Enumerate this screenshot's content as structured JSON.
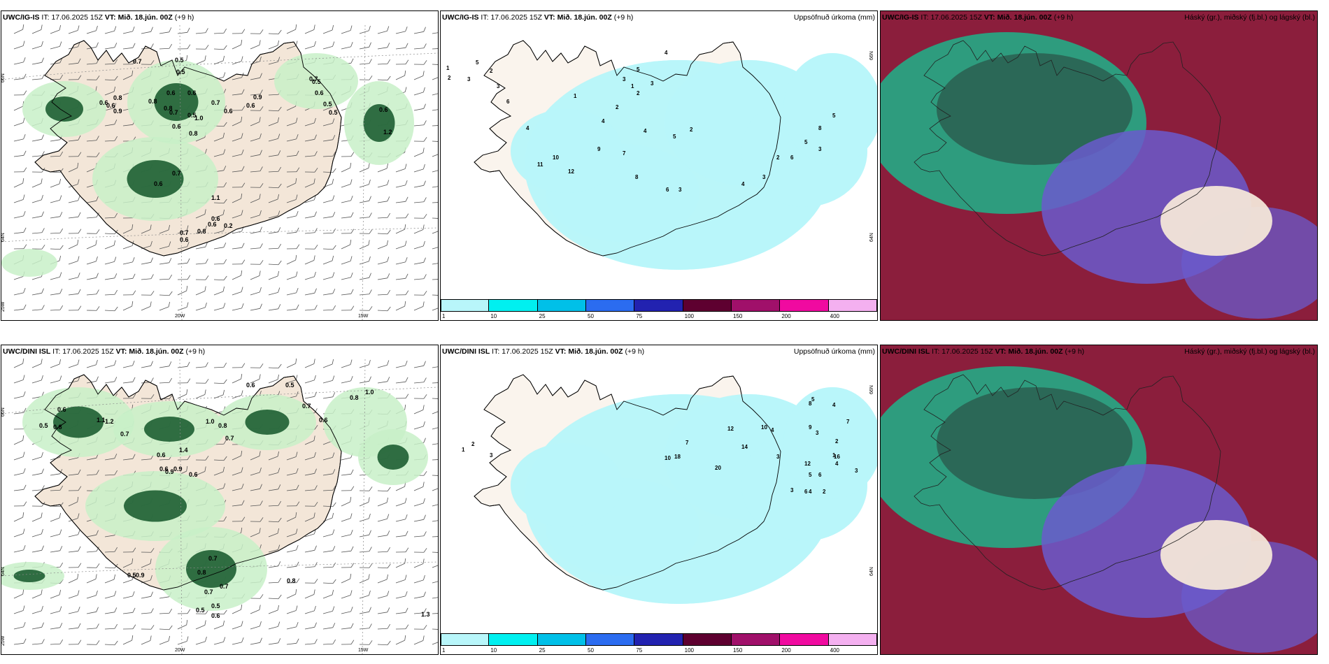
{
  "panels": [
    {
      "id": "r0c0",
      "model": "UWC/IG-IS",
      "it_label": "IT:",
      "it_value": "17.06.2025 15Z",
      "vt_label": "VT:",
      "vt_value": "Mið. 18.jún. 00Z",
      "lead": "(+9 h)",
      "right_title": "",
      "type": "wind"
    },
    {
      "id": "r0c1",
      "model": "UWC/IG-IS",
      "it_label": "IT:",
      "it_value": "17.06.2025 15Z",
      "vt_label": "VT:",
      "vt_value": "Mið. 18.jún. 00Z",
      "lead": "(+9 h)",
      "right_title": "Uppsöfnuð úrkoma (mm)",
      "type": "precip"
    },
    {
      "id": "r0c2",
      "model": "UWC/IG-IS",
      "it_label": "IT:",
      "it_value": "17.06.2025 15Z",
      "vt_label": "VT:",
      "vt_value": "Mið. 18.jún. 00Z",
      "lead": "(+9 h)",
      "right_title": "Háský (gr.), miðský (fj.bl.) og lágský (bl.)",
      "type": "cloud"
    },
    {
      "id": "r1c0",
      "model": "UWC/DINI ISL",
      "it_label": "IT:",
      "it_value": "17.06.2025 15Z",
      "vt_label": "VT:",
      "vt_value": "Mið. 18.jún. 00Z",
      "lead": "(+9 h)",
      "right_title": "",
      "type": "wind"
    },
    {
      "id": "r1c1",
      "model": "UWC/DINI ISL",
      "it_label": "IT:",
      "it_value": "17.06.2025 15Z",
      "vt_label": "VT:",
      "vt_value": "Mið. 18.jún. 00Z",
      "lead": "(+9 h)",
      "right_title": "Uppsöfnuð úrkoma (mm)",
      "type": "precip"
    },
    {
      "id": "r1c2",
      "model": "UWC/DINI ISL",
      "it_label": "IT:",
      "it_value": "17.06.2025 15Z",
      "vt_label": "VT:",
      "vt_value": "Mið. 18.jún. 00Z",
      "lead": "(+9 h)",
      "right_title": "Háský (gr.), miðský (fj.bl.) og lágský (bl.)",
      "type": "cloud"
    }
  ],
  "axis_labels": {
    "lat66": "66N",
    "lat64": "64N",
    "lon20": "20W",
    "lon15": "15W",
    "lon25": "25W",
    "lat_right66": "66N",
    "lat_right64": "64N"
  },
  "precip_colorbar": {
    "ticks": [
      "1",
      "10",
      "25",
      "50",
      "75",
      "100",
      "150",
      "200",
      "400"
    ],
    "colors": [
      "#b8f6fa",
      "#00f0f0",
      "#00c0e8",
      "#2b6cf0",
      "#2222b0",
      "#5e0030",
      "#a0106a",
      "#f00aa0",
      "#f4b0f0"
    ]
  },
  "colors": {
    "land": "#f3e6d8",
    "ocean": "#ffffff",
    "glacier": "#ffffff",
    "precip_light": "#b8f6fa",
    "wind_green_light": "#c8f0c8",
    "wind_green_dark": "#1d5e32",
    "cloud_high": "#8b1e3c",
    "cloud_mid": "#6a5bcc",
    "cloud_low": "#1db38a"
  },
  "wind_labels_top": [
    "0.7",
    "0.5",
    "0.5",
    "0.8",
    "0.6",
    "0.6",
    "0.9",
    "0.8",
    "0.6",
    "0.6",
    "0.8",
    "1.0",
    "0.7",
    "0.5",
    "0.8",
    "0.6",
    "0.7",
    "0.6",
    "0.6",
    "0.9",
    "0.7",
    "0.5",
    "0.6",
    "0.5",
    "0.5",
    "0.6",
    "1.2",
    "0.7",
    "0.6",
    "1.1",
    "0.6",
    "0.6",
    "0.8",
    "0.7",
    "0.6",
    "0.2"
  ],
  "wind_labels_bottom": [
    "0.5",
    "0.6",
    "0.8",
    "1.2",
    "1.1",
    "0.7",
    "0.9",
    "1.0",
    "0.8",
    "0.7",
    "0.6",
    "0.5",
    "0.8",
    "1.0",
    "0.7",
    "0.6",
    "0.6",
    "1.4",
    "0.6",
    "0.9",
    "0.6",
    "0.7",
    "0.5",
    "0.9",
    "0.8",
    "0.7",
    "0.5",
    "0.5",
    "0.7",
    "0.6",
    "0.8",
    "1.3"
  ],
  "precip_labels_top": [
    "1",
    "2",
    "3",
    "5",
    "2",
    "3",
    "6",
    "4",
    "11",
    "10",
    "12",
    "9",
    "7",
    "8",
    "6",
    "3",
    "4",
    "5",
    "2",
    "4",
    "3",
    "2",
    "6",
    "5",
    "8",
    "3",
    "5",
    "4",
    "1",
    "2",
    "4",
    "3",
    "5",
    "3",
    "1",
    "2"
  ],
  "precip_labels_bottom": [
    "1",
    "2",
    "3",
    "10",
    "18",
    "7",
    "12",
    "10",
    "4",
    "3",
    "9",
    "5",
    "6",
    "2",
    "4",
    "3",
    "16",
    "12",
    "5",
    "8",
    "4",
    "7",
    "3",
    "2",
    "1",
    "6",
    "4",
    "20",
    "14",
    "3"
  ]
}
